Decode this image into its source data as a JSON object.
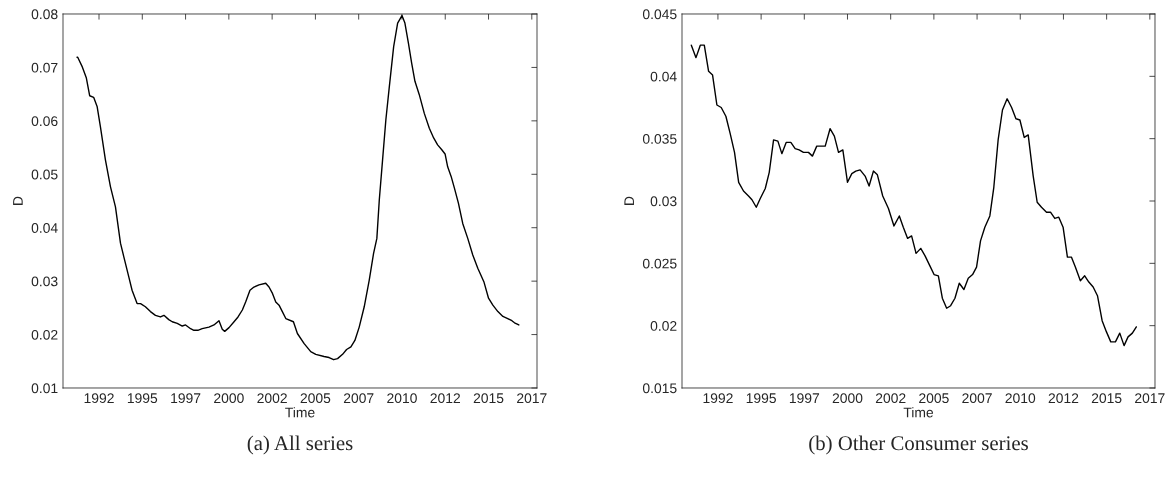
{
  "chart_data": [
    {
      "type": "line",
      "title": "(a) All series",
      "xlabel": "Time",
      "ylabel": "D",
      "xlim": [
        1990.42,
        2017.8
      ],
      "ylim": [
        0.01,
        0.08
      ],
      "xticks": [
        {
          "value": 1992.5,
          "label": "1992"
        },
        {
          "value": 1995,
          "label": "1995"
        },
        {
          "value": 1997.5,
          "label": "1997"
        },
        {
          "value": 2000,
          "label": "2000"
        },
        {
          "value": 2002.5,
          "label": "2002"
        },
        {
          "value": 2005,
          "label": "2005"
        },
        {
          "value": 2007.5,
          "label": "2007"
        },
        {
          "value": 2010,
          "label": "2010"
        },
        {
          "value": 2012.5,
          "label": "2012"
        },
        {
          "value": 2015,
          "label": "2015"
        },
        {
          "value": 2017.5,
          "label": "2017"
        }
      ],
      "yticks": [
        0.01,
        0.02,
        0.03,
        0.04,
        0.05,
        0.06,
        0.07,
        0.08
      ],
      "series": [
        {
          "color": "#000000",
          "x": [
            1991.23,
            1991.27,
            1991.52,
            1991.77,
            1991.96,
            1992.19,
            1992.39,
            1992.58,
            1992.87,
            1993.16,
            1993.45,
            1993.74,
            1993.93,
            1994.22,
            1994.41,
            1994.7,
            1994.9,
            1995.18,
            1995.47,
            1995.76,
            1996.05,
            1996.25,
            1996.53,
            1996.73,
            1997.02,
            1997.31,
            1997.5,
            1997.79,
            1997.98,
            1998.21,
            1998.46,
            1998.85,
            1999.14,
            1999.43,
            1999.62,
            1999.76,
            2000.01,
            2000.3,
            2000.53,
            2000.78,
            2000.97,
            2001.22,
            2001.45,
            2001.74,
            2002.13,
            2002.32,
            2002.52,
            2002.71,
            2002.9,
            2003.09,
            2003.29,
            2003.73,
            2003.96,
            2004.35,
            2004.73,
            2005.02,
            2005.5,
            2005.79,
            2006.05,
            2006.28,
            2006.57,
            2006.8,
            2007.05,
            2007.28,
            2007.53,
            2007.82,
            2008.11,
            2008.36,
            2008.55,
            2008.69,
            2008.88,
            2009.07,
            2009.27,
            2009.52,
            2009.75,
            2010.0,
            2010.17,
            2010.37,
            2010.56,
            2010.75,
            2011.0,
            2011.29,
            2011.58,
            2011.83,
            2012.06,
            2012.3,
            2012.49,
            2012.64,
            2012.84,
            2013.03,
            2013.26,
            2013.51,
            2013.8,
            2014.09,
            2014.38,
            2014.73,
            2015.0,
            2015.25,
            2015.54,
            2015.83,
            2016.11,
            2016.35,
            2016.5,
            2016.75
          ],
          "values": [
            0.0719,
            0.0719,
            0.0702,
            0.068,
            0.0647,
            0.0644,
            0.0627,
            0.0589,
            0.0527,
            0.0477,
            0.0439,
            0.0371,
            0.0346,
            0.0308,
            0.0283,
            0.0258,
            0.0258,
            0.0252,
            0.0243,
            0.0236,
            0.0233,
            0.0236,
            0.0228,
            0.0224,
            0.0221,
            0.0216,
            0.0218,
            0.0211,
            0.0208,
            0.0208,
            0.0211,
            0.0214,
            0.0218,
            0.0226,
            0.021,
            0.0206,
            0.0213,
            0.0224,
            0.0233,
            0.0246,
            0.0261,
            0.0283,
            0.0289,
            0.0293,
            0.0296,
            0.0289,
            0.0277,
            0.0261,
            0.0255,
            0.0243,
            0.023,
            0.0224,
            0.0202,
            0.0183,
            0.0168,
            0.0163,
            0.0159,
            0.0157,
            0.0153,
            0.0155,
            0.0163,
            0.0172,
            0.0177,
            0.0189,
            0.0214,
            0.0252,
            0.0302,
            0.0352,
            0.038,
            0.0452,
            0.0527,
            0.0602,
            0.0664,
            0.0739,
            0.0783,
            0.0797,
            0.0783,
            0.0746,
            0.0708,
            0.0674,
            0.0649,
            0.0614,
            0.0586,
            0.0568,
            0.0555,
            0.0546,
            0.0538,
            0.0514,
            0.0496,
            0.0474,
            0.0446,
            0.0408,
            0.038,
            0.0349,
            0.0324,
            0.0299,
            0.0268,
            0.0255,
            0.0243,
            0.0234,
            0.023,
            0.0226,
            0.0222,
            0.0218
          ]
        }
      ]
    },
    {
      "type": "line",
      "title": "(b) Other Consumer series",
      "xlabel": "Time",
      "ylabel": "D",
      "xlim": [
        1990.42,
        2017.8
      ],
      "ylim": [
        0.015,
        0.045
      ],
      "xticks": [
        {
          "value": 1992.5,
          "label": "1992"
        },
        {
          "value": 1995,
          "label": "1995"
        },
        {
          "value": 1997.5,
          "label": "1997"
        },
        {
          "value": 2000,
          "label": "2000"
        },
        {
          "value": 2002.5,
          "label": "2002"
        },
        {
          "value": 2005,
          "label": "2005"
        },
        {
          "value": 2007.5,
          "label": "2007"
        },
        {
          "value": 2010,
          "label": "2010"
        },
        {
          "value": 2012.5,
          "label": "2012"
        },
        {
          "value": 2015,
          "label": "2015"
        },
        {
          "value": 2017.5,
          "label": "2017"
        }
      ],
      "yticks": [
        0.015,
        0.02,
        0.025,
        0.03,
        0.035,
        0.04,
        0.045
      ],
      "series": [
        {
          "color": "#000000",
          "x": [
            1990.96,
            1991.23,
            1991.48,
            1991.71,
            1991.96,
            1992.19,
            1992.44,
            1992.69,
            1992.96,
            1993.21,
            1993.46,
            1993.7,
            1993.98,
            1994.27,
            1994.47,
            1994.72,
            1994.95,
            1995.24,
            1995.47,
            1995.72,
            1995.97,
            1996.2,
            1996.45,
            1996.72,
            1996.97,
            1997.2,
            1997.45,
            1997.74,
            1997.97,
            1998.22,
            1998.47,
            1998.71,
            1998.99,
            1999.24,
            1999.48,
            1999.73,
            2000.0,
            2000.25,
            2000.48,
            2000.73,
            2001.02,
            2001.25,
            2001.5,
            2001.73,
            2002.04,
            2002.37,
            2002.69,
            2003.0,
            2003.23,
            2003.48,
            2003.71,
            2003.97,
            2004.24,
            2004.49,
            2004.77,
            2005.01,
            2005.26,
            2005.49,
            2005.74,
            2005.97,
            2006.22,
            2006.47,
            2006.74,
            2006.99,
            2007.24,
            2007.47,
            2007.7,
            2007.95,
            2008.24,
            2008.47,
            2008.72,
            2008.97,
            2009.24,
            2009.5,
            2009.75,
            2009.98,
            2010.23,
            2010.46,
            2010.75,
            2010.98,
            2011.23,
            2011.52,
            2011.75,
            2012.0,
            2012.23,
            2012.48,
            2012.73,
            2012.96,
            2013.19,
            2013.48,
            2013.73,
            2013.97,
            2014.22,
            2014.47,
            2014.74,
            2014.99,
            2015.24,
            2015.51,
            2015.76,
            2016.01,
            2016.24,
            2016.49,
            2016.72
          ],
          "values": [
            0.0425,
            0.0415,
            0.0425,
            0.0425,
            0.0404,
            0.0401,
            0.0377,
            0.0375,
            0.0368,
            0.0354,
            0.0339,
            0.0315,
            0.0308,
            0.0304,
            0.0301,
            0.0295,
            0.0302,
            0.031,
            0.0323,
            0.0349,
            0.0348,
            0.0338,
            0.0347,
            0.0347,
            0.0342,
            0.0341,
            0.0339,
            0.0339,
            0.0336,
            0.0344,
            0.0344,
            0.0344,
            0.0358,
            0.0352,
            0.0339,
            0.0341,
            0.0315,
            0.0322,
            0.0324,
            0.0325,
            0.032,
            0.0312,
            0.0324,
            0.0321,
            0.0304,
            0.0294,
            0.028,
            0.0288,
            0.0279,
            0.027,
            0.0272,
            0.0258,
            0.0262,
            0.0256,
            0.0248,
            0.0241,
            0.024,
            0.0222,
            0.0214,
            0.0216,
            0.0222,
            0.0234,
            0.0229,
            0.0238,
            0.0241,
            0.0247,
            0.0268,
            0.0279,
            0.0288,
            0.0311,
            0.0349,
            0.0373,
            0.0382,
            0.0375,
            0.0366,
            0.0365,
            0.0351,
            0.0353,
            0.032,
            0.0299,
            0.0295,
            0.0291,
            0.0291,
            0.0286,
            0.0287,
            0.0279,
            0.0255,
            0.0255,
            0.0247,
            0.0236,
            0.024,
            0.0235,
            0.0231,
            0.0224,
            0.0204,
            0.0195,
            0.0187,
            0.0187,
            0.0194,
            0.0184,
            0.0191,
            0.0194,
            0.0199
          ]
        }
      ]
    }
  ]
}
